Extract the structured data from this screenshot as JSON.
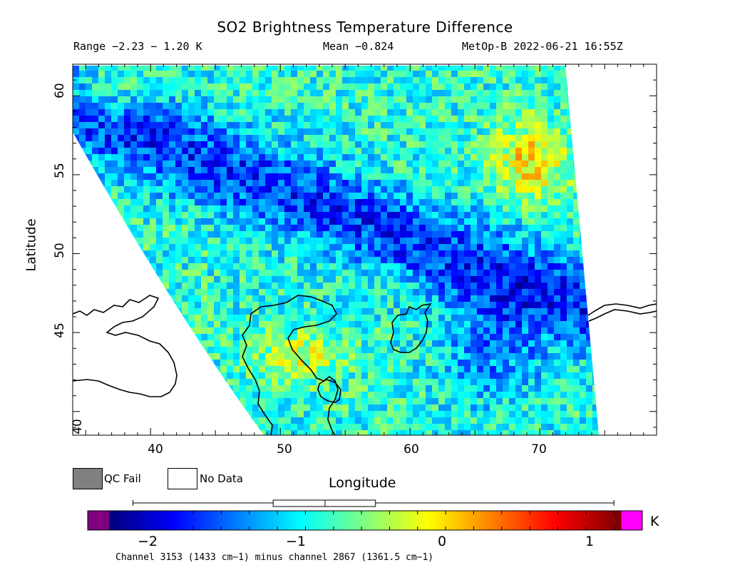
{
  "header": {
    "title": "SO2 Brightness Temperature Difference",
    "range_text": "Range −2.23 − 1.20 K",
    "mean_text": "Mean −0.824",
    "platform_time": "MetOp-B 2022-06-21 16:55Z"
  },
  "map": {
    "x_axis_label": "Longitude",
    "y_axis_label": "Latitude",
    "x_ticks": [
      "40",
      "50",
      "60",
      "70"
    ],
    "y_ticks": [
      "40",
      "45",
      "50",
      "55",
      "60"
    ],
    "lon_range": [
      34,
      79
    ],
    "lat_range": [
      38.5,
      62
    ],
    "coastline_color": "#000000",
    "no_data_color": "#ffffff"
  },
  "legend": {
    "qc_fail_label": "QC Fail",
    "qc_fail_color": "#808080",
    "no_data_label": "No Data"
  },
  "colorbar": {
    "unit": "K",
    "tick_labels": [
      "−2",
      "−1",
      "0",
      "1"
    ],
    "range": [
      -2.4,
      1.25
    ],
    "under_color": "#800080",
    "over_color": "#ff00ff",
    "footnote": "Channel 3153 (1433 cm−1) minus channel 2867 (1361.5 cm−1)"
  },
  "boxplot": {
    "min": -2.23,
    "q1": -1.23,
    "median": -0.86,
    "q3": -0.5,
    "max": 1.2
  }
}
